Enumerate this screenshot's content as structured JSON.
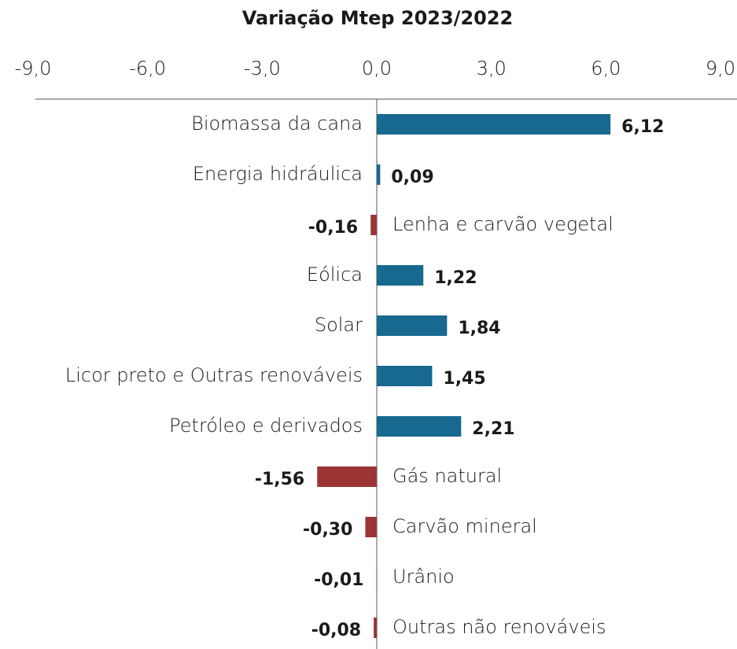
{
  "chart_data": {
    "type": "diverging_bar",
    "title": "Variação Mtep 2023/2022",
    "categories": [
      "Biomassa da cana",
      "Energia hidráulica",
      "Lenha e carvão vegetal",
      "Eólica",
      "Solar",
      "Licor preto e Outras renováveis",
      "Petróleo e derivados",
      "Gás natural",
      "Carvão mineral",
      "Urânio",
      "Outras não renováveis"
    ],
    "values": [
      6.12,
      0.09,
      -0.16,
      1.22,
      1.84,
      1.45,
      2.21,
      -1.56,
      -0.3,
      -0.01,
      -0.08
    ],
    "value_labels": [
      "6,12",
      "0,09",
      "-0,16",
      "1,22",
      "1,84",
      "1,45",
      "2,21",
      "-1,56",
      "-0,30",
      "-0,01",
      "-0,08"
    ],
    "color_positive": "#17698f",
    "color_negative": "#9b3535",
    "xlim": [
      -9,
      9
    ],
    "xticks": [
      {
        "value": -9,
        "label": "-9,0"
      },
      {
        "value": -6,
        "label": "-6,0"
      },
      {
        "value": -3,
        "label": "-3,0"
      },
      {
        "value": 0,
        "label": "0,0"
      },
      {
        "value": 3,
        "label": "3,0"
      },
      {
        "value": 6,
        "label": "6,0"
      },
      {
        "value": 9,
        "label": "9,0"
      }
    ],
    "xaxis_position": "top"
  }
}
